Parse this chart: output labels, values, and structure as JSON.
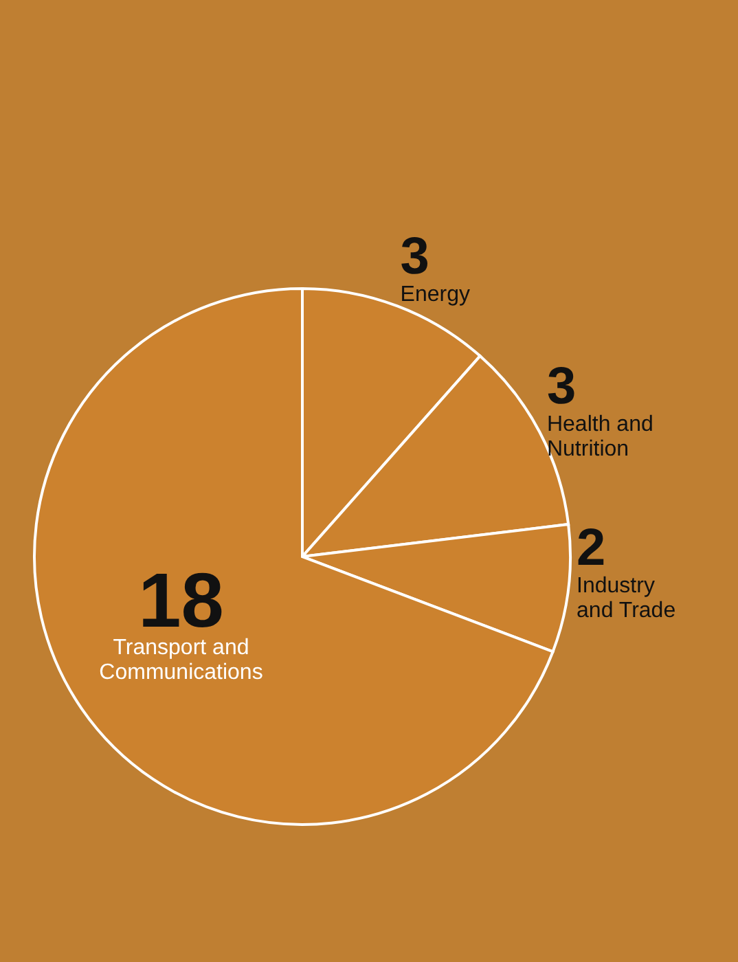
{
  "chart_data": {
    "type": "pie",
    "categories": [
      "Energy",
      "Health and Nutrition",
      "Industry and Trade",
      "Transport and Communications"
    ],
    "values": [
      3,
      3,
      2,
      18
    ],
    "colors": [
      "#cc822e",
      "#cc822e",
      "#cc822e",
      "#cc822e"
    ],
    "data_labels": true
  }
}
